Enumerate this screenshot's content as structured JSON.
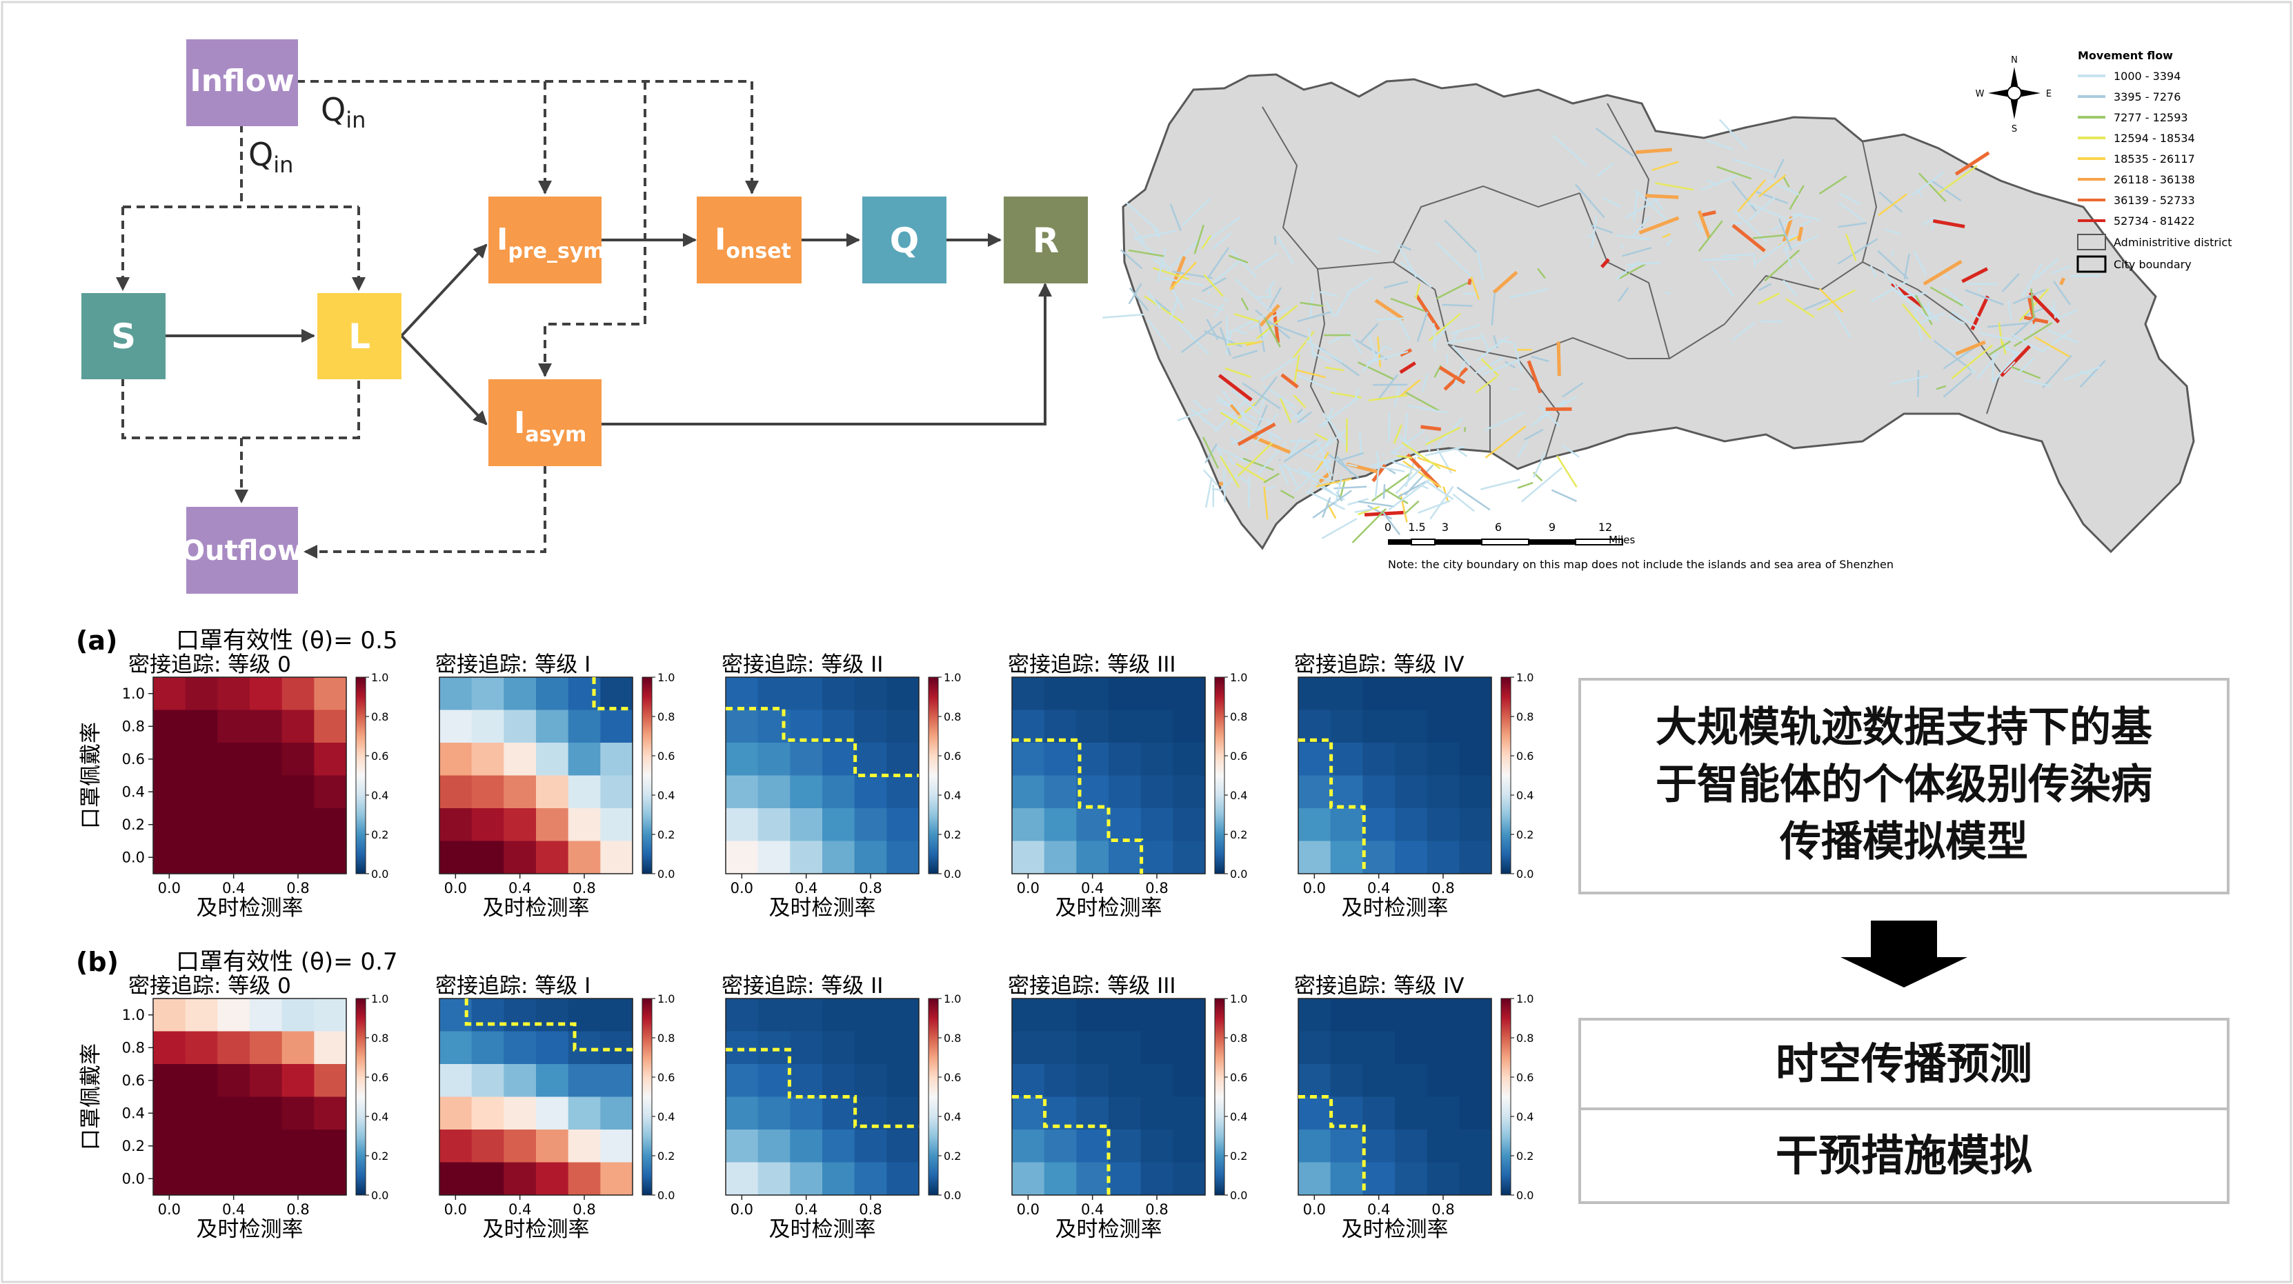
{
  "flow": {
    "nodes": {
      "inflow": "Inflow",
      "outflow": "Outflow",
      "s": "S",
      "l": "L",
      "i_pre_main": "I",
      "i_pre_sub": "pre_sym",
      "i_onset_main": "I",
      "i_onset_sub": "onset",
      "i_asym_main": "I",
      "i_asym_sub": "asym",
      "q": "Q",
      "r": "R"
    },
    "qin_main": "Q",
    "qin_sub": "in",
    "colors": {
      "purple": "#a98bc4",
      "teal": "#5b9e97",
      "yellow": "#fdd34c",
      "orange": "#f79a49",
      "blue": "#59a6ba",
      "green": "#7f8b5c"
    }
  },
  "map": {
    "legend_title": "Movement flow",
    "legend_items": [
      {
        "label": "1000 - 3394",
        "color": "#c6e3ef"
      },
      {
        "label": "3395 - 7276",
        "color": "#a9cbdc"
      },
      {
        "label": "7277 - 12593",
        "color": "#9fc96c"
      },
      {
        "label": "12594 - 18534",
        "color": "#e6e85c"
      },
      {
        "label": "18535 - 26117",
        "color": "#fbd34d"
      },
      {
        "label": "26118 - 36138",
        "color": "#f6a44b"
      },
      {
        "label": "36139 - 52733",
        "color": "#ec6a32"
      },
      {
        "label": "52734 - 81422",
        "color": "#d7261e"
      }
    ],
    "legend_district": "Administritive district",
    "legend_boundary": "City boundary",
    "compass": {
      "n": "N",
      "s": "S",
      "e": "E",
      "w": "W"
    },
    "scale_ticks": [
      "0",
      "1.5",
      "3",
      "6",
      "9",
      "12"
    ],
    "scale_unit": "Miles",
    "note": "Note: the city boundary on this map does not include the islands and sea area of Shenzhen"
  },
  "heatmaps": {
    "rows": [
      {
        "panel": "(a)",
        "title": "口罩有效性 (θ)= 0.5"
      },
      {
        "panel": "(b)",
        "title": "口罩有效性 (θ)= 0.7"
      }
    ],
    "subplot_titles": [
      "密接追踪: 等级 0",
      "密接追踪: 等级 I",
      "密接追踪: 等级 II",
      "密接追踪: 等级 III",
      "密接追踪: 等级 IV"
    ],
    "xlabel": "及时检测率",
    "ylabel": "口罩佩戴率",
    "x_ticks": [
      "0.0",
      "0.4",
      "0.8"
    ],
    "y_ticks": [
      "1.0",
      "0.8",
      "0.6",
      "0.4",
      "0.2",
      "0.0"
    ],
    "cbar_ticks": [
      "1.0",
      "0.8",
      "0.6",
      "0.4",
      "0.2",
      "0.0"
    ]
  },
  "chart_data": {
    "type": "heatmap",
    "x": [
      0.0,
      0.2,
      0.4,
      0.6,
      0.8,
      1.0
    ],
    "y": [
      0.0,
      0.2,
      0.4,
      0.6,
      0.8,
      1.0
    ],
    "colorbar_range": [
      0.0,
      1.0
    ],
    "colormap": "RdBu_r",
    "panels": [
      {
        "row": "a",
        "level": "0",
        "z_top_to_bottom": [
          [
            0.92,
            0.95,
            0.93,
            0.9,
            0.85,
            0.76
          ],
          [
            1,
            1,
            0.97,
            0.97,
            0.93,
            0.82
          ],
          [
            1,
            1,
            1,
            1,
            0.98,
            0.92
          ],
          [
            1,
            1,
            1,
            1,
            1,
            0.97
          ],
          [
            1,
            1,
            1,
            1,
            1,
            1
          ],
          [
            1,
            1,
            1,
            1,
            1,
            1
          ]
        ],
        "boundary": null
      },
      {
        "row": "a",
        "level": "I",
        "z_top_to_bottom": [
          [
            0.25,
            0.28,
            0.22,
            0.15,
            0.1,
            0.05
          ],
          [
            0.45,
            0.42,
            0.35,
            0.25,
            0.15,
            0.1
          ],
          [
            0.7,
            0.65,
            0.55,
            0.38,
            0.22,
            0.32
          ],
          [
            0.82,
            0.8,
            0.75,
            0.62,
            0.42,
            0.35
          ],
          [
            0.95,
            0.92,
            0.88,
            0.75,
            0.55,
            0.42
          ],
          [
            1,
            1,
            0.95,
            0.88,
            0.72,
            0.55
          ]
        ],
        "boundary": [
          [
            0.8,
            1.0
          ],
          [
            0.8,
            0.84
          ],
          [
            1.0,
            0.84
          ]
        ]
      },
      {
        "row": "a",
        "level": "II",
        "z_top_to_bottom": [
          [
            0.1,
            0.08,
            0.08,
            0.06,
            0.05,
            0.04
          ],
          [
            0.14,
            0.12,
            0.1,
            0.08,
            0.06,
            0.05
          ],
          [
            0.2,
            0.18,
            0.14,
            0.1,
            0.08,
            0.06
          ],
          [
            0.28,
            0.25,
            0.2,
            0.15,
            0.1,
            0.08
          ],
          [
            0.4,
            0.35,
            0.28,
            0.2,
            0.14,
            0.1
          ],
          [
            0.52,
            0.45,
            0.35,
            0.25,
            0.18,
            0.12
          ]
        ],
        "boundary": [
          [
            0.0,
            0.84
          ],
          [
            0.3,
            0.84
          ],
          [
            0.3,
            0.68
          ],
          [
            0.67,
            0.68
          ],
          [
            0.67,
            0.5
          ],
          [
            1.0,
            0.5
          ]
        ]
      },
      {
        "row": "a",
        "level": "III",
        "z_top_to_bottom": [
          [
            0.05,
            0.04,
            0.04,
            0.03,
            0.03,
            0.03
          ],
          [
            0.08,
            0.06,
            0.05,
            0.04,
            0.04,
            0.03
          ],
          [
            0.12,
            0.1,
            0.08,
            0.06,
            0.05,
            0.04
          ],
          [
            0.18,
            0.14,
            0.1,
            0.08,
            0.06,
            0.05
          ],
          [
            0.25,
            0.2,
            0.14,
            0.1,
            0.08,
            0.06
          ],
          [
            0.35,
            0.26,
            0.18,
            0.12,
            0.09,
            0.07
          ]
        ],
        "boundary": [
          [
            0.0,
            0.68
          ],
          [
            0.35,
            0.68
          ],
          [
            0.35,
            0.34
          ],
          [
            0.5,
            0.34
          ],
          [
            0.5,
            0.17
          ],
          [
            0.67,
            0.17
          ],
          [
            0.67,
            0.0
          ]
        ]
      },
      {
        "row": "a",
        "level": "IV",
        "z_top_to_bottom": [
          [
            0.04,
            0.04,
            0.03,
            0.03,
            0.03,
            0.03
          ],
          [
            0.06,
            0.05,
            0.04,
            0.04,
            0.03,
            0.03
          ],
          [
            0.1,
            0.08,
            0.06,
            0.05,
            0.04,
            0.03
          ],
          [
            0.14,
            0.12,
            0.08,
            0.06,
            0.05,
            0.04
          ],
          [
            0.2,
            0.16,
            0.1,
            0.08,
            0.06,
            0.05
          ],
          [
            0.28,
            0.2,
            0.14,
            0.1,
            0.08,
            0.06
          ]
        ],
        "boundary": [
          [
            0.0,
            0.68
          ],
          [
            0.17,
            0.68
          ],
          [
            0.17,
            0.34
          ],
          [
            0.34,
            0.34
          ],
          [
            0.34,
            0.0
          ]
        ]
      },
      {
        "row": "b",
        "level": "0",
        "z_top_to_bottom": [
          [
            0.62,
            0.58,
            0.52,
            0.45,
            0.4,
            0.42
          ],
          [
            0.9,
            0.88,
            0.84,
            0.8,
            0.72,
            0.55
          ],
          [
            1,
            1,
            0.98,
            0.95,
            0.9,
            0.82
          ],
          [
            1,
            1,
            1,
            1,
            0.98,
            0.95
          ],
          [
            1,
            1,
            1,
            1,
            1,
            1
          ],
          [
            1,
            1,
            1,
            1,
            1,
            1
          ]
        ],
        "boundary": null
      },
      {
        "row": "b",
        "level": "I",
        "z_top_to_bottom": [
          [
            0.12,
            0.08,
            0.06,
            0.05,
            0.04,
            0.04
          ],
          [
            0.2,
            0.16,
            0.12,
            0.1,
            0.07,
            0.06
          ],
          [
            0.4,
            0.35,
            0.28,
            0.2,
            0.14,
            0.14
          ],
          [
            0.65,
            0.6,
            0.55,
            0.45,
            0.3,
            0.25
          ],
          [
            0.88,
            0.85,
            0.8,
            0.72,
            0.55,
            0.45
          ],
          [
            1,
            1,
            0.95,
            0.9,
            0.8,
            0.7
          ]
        ],
        "boundary": [
          [
            0.14,
            1.0
          ],
          [
            0.14,
            0.87
          ],
          [
            0.7,
            0.87
          ],
          [
            0.7,
            0.74
          ],
          [
            1.0,
            0.74
          ]
        ]
      },
      {
        "row": "b",
        "level": "II",
        "z_top_to_bottom": [
          [
            0.06,
            0.05,
            0.05,
            0.04,
            0.04,
            0.04
          ],
          [
            0.08,
            0.07,
            0.06,
            0.05,
            0.04,
            0.04
          ],
          [
            0.12,
            0.1,
            0.08,
            0.06,
            0.05,
            0.04
          ],
          [
            0.18,
            0.15,
            0.12,
            0.08,
            0.06,
            0.05
          ],
          [
            0.28,
            0.24,
            0.18,
            0.12,
            0.08,
            0.06
          ],
          [
            0.4,
            0.35,
            0.26,
            0.18,
            0.12,
            0.08
          ]
        ],
        "boundary": [
          [
            0.0,
            0.74
          ],
          [
            0.33,
            0.74
          ],
          [
            0.33,
            0.5
          ],
          [
            0.67,
            0.5
          ],
          [
            0.67,
            0.35
          ],
          [
            1.0,
            0.35
          ]
        ]
      },
      {
        "row": "b",
        "level": "III",
        "z_top_to_bottom": [
          [
            0.04,
            0.04,
            0.03,
            0.03,
            0.03,
            0.03
          ],
          [
            0.05,
            0.05,
            0.04,
            0.04,
            0.03,
            0.03
          ],
          [
            0.08,
            0.06,
            0.05,
            0.04,
            0.04,
            0.03
          ],
          [
            0.12,
            0.09,
            0.07,
            0.05,
            0.04,
            0.04
          ],
          [
            0.18,
            0.14,
            0.1,
            0.07,
            0.05,
            0.04
          ],
          [
            0.26,
            0.2,
            0.14,
            0.09,
            0.06,
            0.05
          ]
        ],
        "boundary": [
          [
            0.0,
            0.5
          ],
          [
            0.17,
            0.5
          ],
          [
            0.17,
            0.35
          ],
          [
            0.5,
            0.35
          ],
          [
            0.5,
            0.0
          ]
        ]
      },
      {
        "row": "b",
        "level": "IV",
        "z_top_to_bottom": [
          [
            0.04,
            0.03,
            0.03,
            0.03,
            0.03,
            0.03
          ],
          [
            0.05,
            0.04,
            0.04,
            0.03,
            0.03,
            0.03
          ],
          [
            0.07,
            0.05,
            0.04,
            0.04,
            0.03,
            0.03
          ],
          [
            0.1,
            0.08,
            0.06,
            0.04,
            0.04,
            0.03
          ],
          [
            0.16,
            0.12,
            0.08,
            0.06,
            0.04,
            0.04
          ],
          [
            0.24,
            0.16,
            0.1,
            0.07,
            0.05,
            0.04
          ]
        ],
        "boundary": [
          [
            0.0,
            0.5
          ],
          [
            0.17,
            0.5
          ],
          [
            0.17,
            0.35
          ],
          [
            0.34,
            0.35
          ],
          [
            0.34,
            0.0
          ]
        ]
      }
    ]
  },
  "summary": {
    "title_lines": [
      "大规模轨迹数据支持下的基",
      "于智能体的个体级别传染病",
      "传播模拟模型"
    ],
    "result_1": "时空传播预测",
    "result_2": "干预措施模拟"
  }
}
